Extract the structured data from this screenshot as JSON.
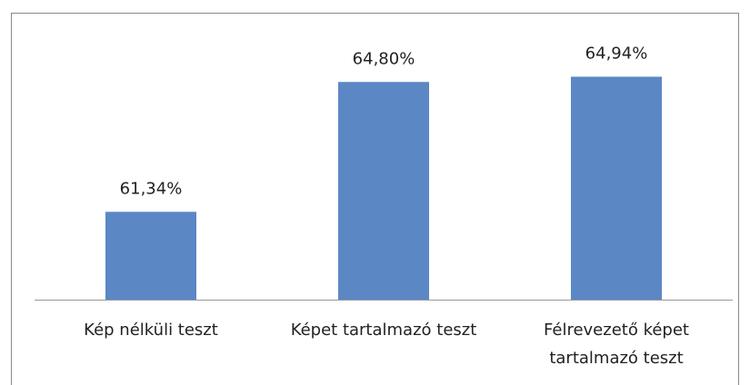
{
  "chart_data": {
    "type": "bar",
    "categories": [
      "Kép nélküli teszt",
      "Képet tartalmazó teszt",
      "Félrevezető képet tartalmazó teszt"
    ],
    "values": [
      61.34,
      64.8,
      64.94
    ],
    "value_labels": [
      "61,34%",
      "64,80%",
      "64,94%"
    ],
    "color": "#5b87c5",
    "ylim": [
      59,
      66.5
    ]
  }
}
